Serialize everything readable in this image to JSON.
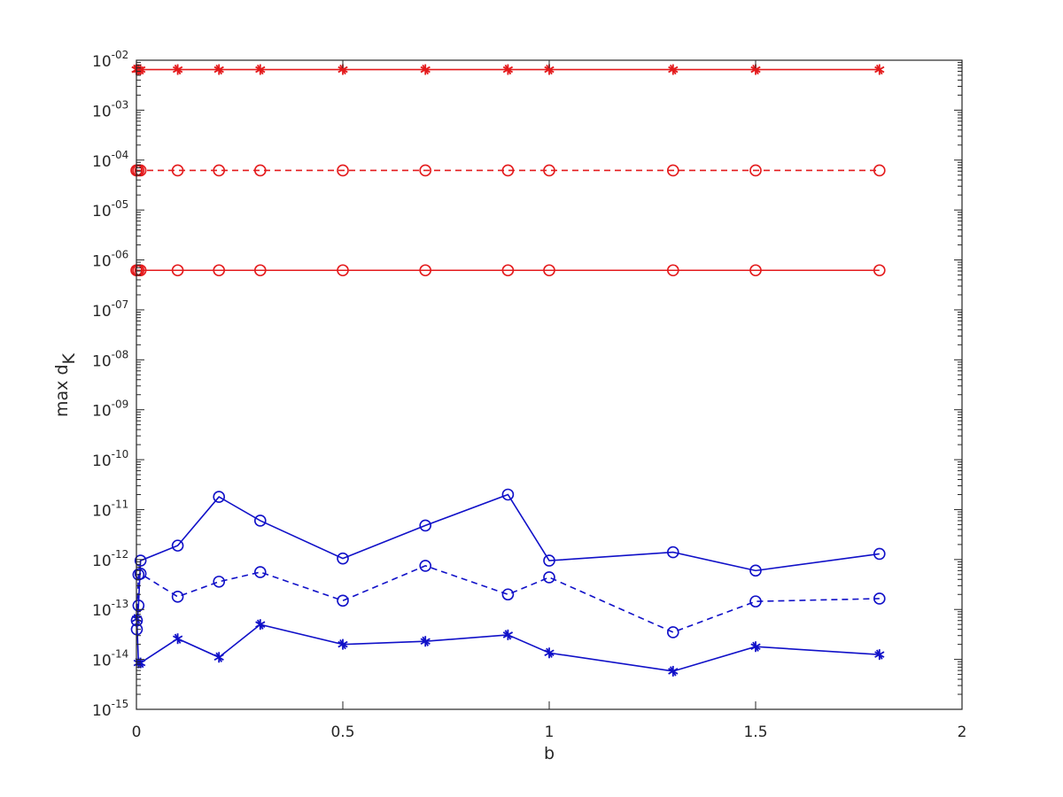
{
  "chart_data": {
    "type": "line",
    "title": "",
    "xlabel": "b",
    "ylabel": {
      "main": "max d",
      "subscript": "K"
    },
    "xlim": [
      0,
      2
    ],
    "ylim": [
      1e-15,
      0.01
    ],
    "yscale": "log",
    "grid": false,
    "legend": "none",
    "x_ticks": [
      0,
      0.5,
      1,
      1.5,
      2
    ],
    "x_tick_labels": [
      "0",
      "0.5",
      "1",
      "1.5",
      "2"
    ],
    "y_ticks": [
      {
        "value": 1e-15,
        "base": "10",
        "exp": "-15"
      },
      {
        "value": 1e-14,
        "base": "10",
        "exp": "-14"
      },
      {
        "value": 1e-13,
        "base": "10",
        "exp": "-13"
      },
      {
        "value": 1e-12,
        "base": "10",
        "exp": "-12"
      },
      {
        "value": 1e-11,
        "base": "10",
        "exp": "-11"
      },
      {
        "value": 1e-10,
        "base": "10",
        "exp": "-10"
      },
      {
        "value": 1e-09,
        "base": "10",
        "exp": "-09"
      },
      {
        "value": 1e-08,
        "base": "10",
        "exp": "-08"
      },
      {
        "value": 1e-07,
        "base": "10",
        "exp": "-07"
      },
      {
        "value": 1e-06,
        "base": "10",
        "exp": "-06"
      },
      {
        "value": 1e-05,
        "base": "10",
        "exp": "-05"
      },
      {
        "value": 0.0001,
        "base": "10",
        "exp": "-04"
      },
      {
        "value": 0.001,
        "base": "10",
        "exp": "-03"
      },
      {
        "value": 0.01,
        "base": "10",
        "exp": "-02"
      }
    ],
    "series": [
      {
        "color": "#e41a1c",
        "dash": "solid",
        "marker": "star",
        "x": [
          0,
          0.001,
          0.005,
          0.01,
          0.1,
          0.2,
          0.3,
          0.5,
          0.7,
          0.9,
          1.0,
          1.3,
          1.5,
          1.8
        ],
        "y": [
          0.0065,
          0.0065,
          0.0065,
          0.0065,
          0.0065,
          0.0065,
          0.0065,
          0.0065,
          0.0065,
          0.0065,
          0.0065,
          0.0065,
          0.0065,
          0.0065
        ]
      },
      {
        "color": "#e41a1c",
        "dash": "dashed",
        "marker": "circle",
        "x": [
          0,
          0.001,
          0.005,
          0.01,
          0.1,
          0.2,
          0.3,
          0.5,
          0.7,
          0.9,
          1.0,
          1.3,
          1.5,
          1.8
        ],
        "y": [
          6.2e-05,
          6.2e-05,
          6.2e-05,
          6.2e-05,
          6.2e-05,
          6.2e-05,
          6.2e-05,
          6.2e-05,
          6.2e-05,
          6.2e-05,
          6.2e-05,
          6.2e-05,
          6.2e-05,
          6.2e-05
        ]
      },
      {
        "color": "#e41a1c",
        "dash": "solid",
        "marker": "circle",
        "x": [
          0,
          0.001,
          0.005,
          0.01,
          0.1,
          0.2,
          0.3,
          0.5,
          0.7,
          0.9,
          1.0,
          1.3,
          1.5,
          1.8
        ],
        "y": [
          6.2e-07,
          6.2e-07,
          6.2e-07,
          6.2e-07,
          6.2e-07,
          6.2e-07,
          6.2e-07,
          6.2e-07,
          6.2e-07,
          6.2e-07,
          6.2e-07,
          6.2e-07,
          6.2e-07,
          6.2e-07
        ]
      },
      {
        "color": "#1010c8",
        "dash": "solid",
        "marker": "circle",
        "x": [
          0.001,
          0.005,
          0.01,
          0.1,
          0.2,
          0.3,
          0.5,
          0.7,
          0.9,
          1.0,
          1.3,
          1.5,
          1.8
        ],
        "y": [
          4e-14,
          1.2e-13,
          9.5e-13,
          1.9e-12,
          1.8e-11,
          6e-12,
          1.05e-12,
          4.8e-12,
          2e-11,
          9.5e-13,
          1.4e-12,
          6e-13,
          1.3e-12
        ]
      },
      {
        "color": "#1010c8",
        "dash": "dashed",
        "marker": "circle",
        "x": [
          0.001,
          0.005,
          0.01,
          0.1,
          0.2,
          0.3,
          0.5,
          0.7,
          0.9,
          1.0,
          1.3,
          1.5,
          1.8
        ],
        "y": [
          6e-14,
          5e-13,
          5.2e-13,
          1.8e-13,
          3.6e-13,
          5.6e-13,
          1.5e-13,
          7.5e-13,
          2e-13,
          4.4e-13,
          3.5e-14,
          1.45e-13,
          1.65e-13
        ]
      },
      {
        "color": "#1010c8",
        "dash": "solid",
        "marker": "star",
        "x": [
          0.001,
          0.005,
          0.01,
          0.1,
          0.2,
          0.3,
          0.5,
          0.7,
          0.9,
          1.0,
          1.3,
          1.5,
          1.8
        ],
        "y": [
          6.5e-14,
          8.5e-15,
          8.5e-15,
          2.6e-14,
          1.1e-14,
          5e-14,
          2e-14,
          2.3e-14,
          3.1e-14,
          1.35e-14,
          5.8e-15,
          1.8e-14,
          1.25e-14
        ]
      }
    ]
  }
}
